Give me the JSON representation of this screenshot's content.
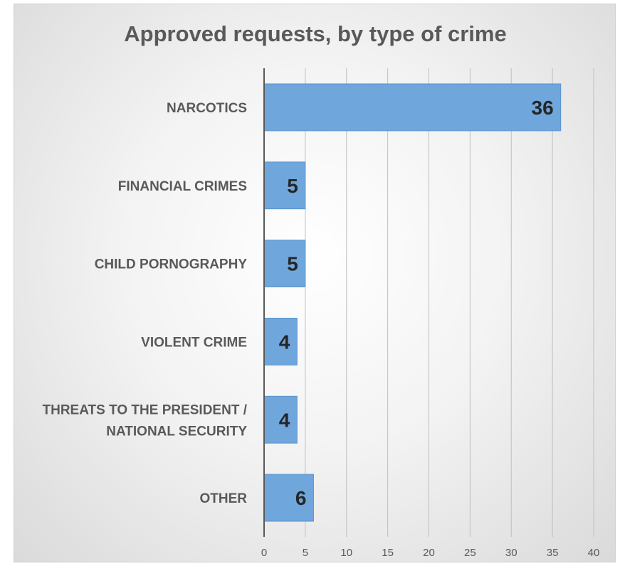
{
  "chart_data": {
    "type": "bar",
    "orientation": "horizontal",
    "title": "Approved requests, by type of crime",
    "categories": [
      "NARCOTICS",
      "FINANCIAL CRIMES",
      "CHILD PORNOGRAPHY",
      "VIOLENT CRIME",
      "THREATS TO THE PRESIDENT /\nNATIONAL SECURITY",
      "OTHER"
    ],
    "values": [
      36,
      5,
      5,
      4,
      4,
      6
    ],
    "xlim": [
      0,
      40
    ],
    "xticks": [
      0,
      5,
      10,
      15,
      20,
      25,
      30,
      35,
      40
    ],
    "grid": "vertical",
    "data_labels": true,
    "colors": {
      "bar": "#6fa6dc",
      "bar_edge": "#5b93cc",
      "text": "#595959",
      "data_label": "#262626",
      "grid": "#bfbfbf",
      "axis": "#595959"
    }
  }
}
